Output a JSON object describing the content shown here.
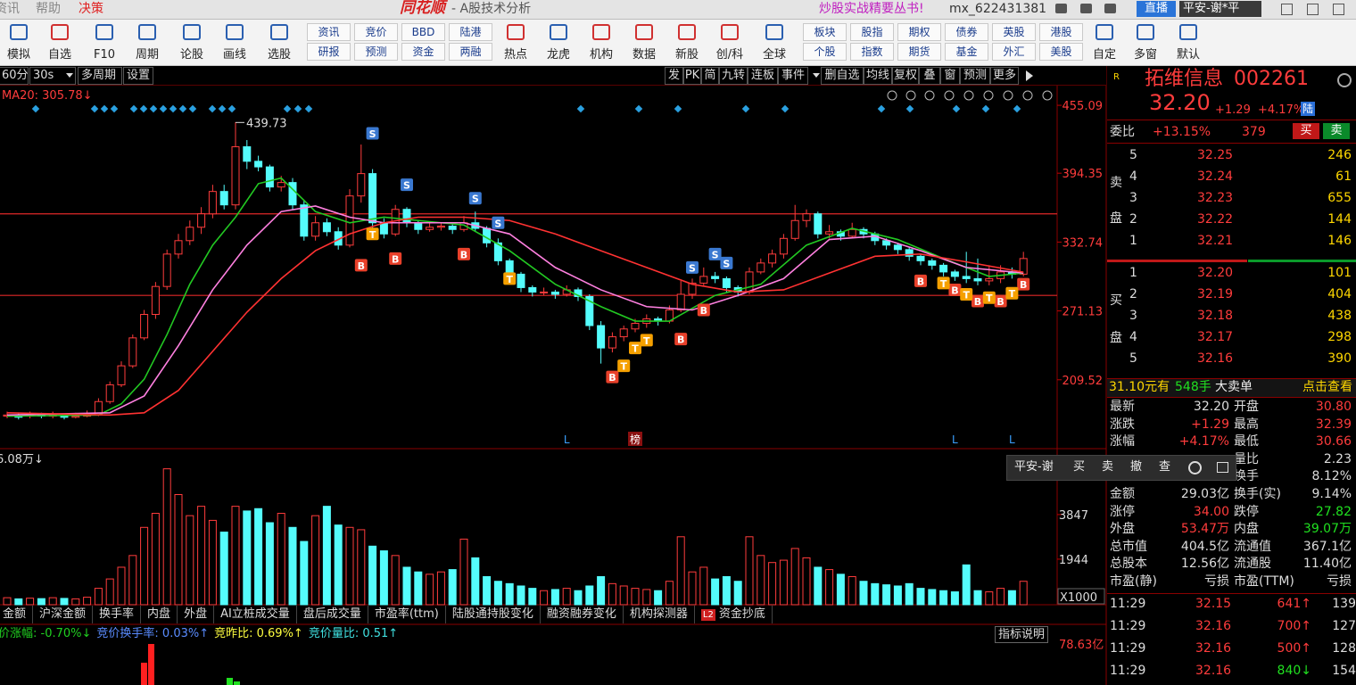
{
  "menu": {
    "left": [
      "资讯",
      "帮助",
      "决策"
    ],
    "logo": "同花顺",
    "title": "- A股技术分析",
    "promo": "炒股实战精要丛书!",
    "user": "mx_622431381",
    "live": "直播",
    "account": "平安-谢*平"
  },
  "toolbar": {
    "left": [
      "模拟",
      "自选",
      "F10",
      "周期",
      "论股",
      "画线",
      "选股"
    ],
    "pairs": [
      [
        "资讯",
        "研报"
      ],
      [
        "竞价",
        "预测"
      ],
      [
        "BBD",
        "资金"
      ],
      [
        "陆港",
        "两融"
      ]
    ],
    "mid": [
      "热点",
      "龙虎",
      "机构",
      "数据",
      "新股",
      "创/科",
      "全球"
    ],
    "pairs2": [
      [
        "板块",
        "个股"
      ],
      [
        "股指",
        "指数"
      ],
      [
        "期权",
        "期货"
      ],
      [
        "债券",
        "基金"
      ],
      [
        "英股",
        "外汇"
      ],
      [
        "港股",
        "美股"
      ]
    ],
    "right": [
      "自定",
      "多窗",
      "默认"
    ]
  },
  "period_bar": {
    "items": [
      "60分",
      "30s",
      "多周期",
      "设置"
    ],
    "tools": [
      "发",
      "PK",
      "简",
      "九转",
      "连板",
      "事件",
      "删自选",
      "均线",
      "复权",
      "叠",
      "窗",
      "预测",
      "更多"
    ]
  },
  "chart_data": [
    {
      "type": "candlestick",
      "ma_label": "MA20: 305.78↓",
      "high_label": 439.73,
      "ylim": [
        148.7,
        473.5
      ],
      "yticks": [
        455.09,
        394.35,
        332.74,
        271.13,
        209.52
      ],
      "candles": [
        [
          177,
          181,
          175,
          178
        ],
        [
          178,
          180,
          174,
          176
        ],
        [
          177,
          181,
          175,
          179
        ],
        [
          179,
          180,
          175,
          177
        ],
        [
          177,
          181,
          175,
          178
        ],
        [
          178,
          179,
          174,
          176
        ],
        [
          176,
          180,
          175,
          177
        ],
        [
          177,
          182,
          176,
          178
        ],
        [
          178,
          193,
          177,
          190
        ],
        [
          190,
          208,
          188,
          205
        ],
        [
          205,
          226,
          203,
          222
        ],
        [
          222,
          250,
          220,
          247
        ],
        [
          247,
          272,
          245,
          268
        ],
        [
          268,
          297,
          264,
          293
        ],
        [
          293,
          326,
          290,
          322
        ],
        [
          322,
          340,
          318,
          334
        ],
        [
          334,
          352,
          330,
          346
        ],
        [
          346,
          364,
          340,
          358
        ],
        [
          358,
          384,
          354,
          378
        ],
        [
          378,
          384,
          362,
          366
        ],
        [
          366,
          440,
          362,
          418
        ],
        [
          418,
          424,
          398,
          405
        ],
        [
          405,
          410,
          396,
          400
        ],
        [
          400,
          402,
          378,
          382
        ],
        [
          382,
          392,
          378,
          386
        ],
        [
          386,
          390,
          362,
          366
        ],
        [
          366,
          370,
          334,
          338
        ],
        [
          338,
          356,
          334,
          350
        ],
        [
          350,
          354,
          338,
          342
        ],
        [
          342,
          346,
          326,
          330
        ],
        [
          330,
          380,
          328,
          374
        ],
        [
          374,
          420,
          368,
          394
        ],
        [
          394,
          398,
          344,
          350
        ],
        [
          350,
          354,
          336,
          340
        ],
        [
          340,
          366,
          338,
          362
        ],
        [
          362,
          364,
          346,
          350
        ],
        [
          350,
          352,
          340,
          344
        ],
        [
          344,
          350,
          342,
          346
        ],
        [
          346,
          350,
          343,
          347
        ],
        [
          347,
          349,
          340,
          344
        ],
        [
          344,
          356,
          342,
          350
        ],
        [
          350,
          360,
          342,
          345
        ],
        [
          345,
          347,
          328,
          332
        ],
        [
          332,
          336,
          312,
          316
        ],
        [
          316,
          318,
          300,
          304
        ],
        [
          304,
          306,
          288,
          292
        ],
        [
          292,
          294,
          284,
          288
        ],
        [
          288,
          292,
          285,
          288
        ],
        [
          288,
          290,
          282,
          286
        ],
        [
          286,
          294,
          284,
          290
        ],
        [
          290,
          292,
          280,
          284
        ],
        [
          284,
          286,
          254,
          258
        ],
        [
          258,
          262,
          224,
          238
        ],
        [
          238,
          252,
          234,
          248
        ],
        [
          248,
          258,
          244,
          255
        ],
        [
          255,
          264,
          252,
          260
        ],
        [
          260,
          268,
          256,
          264
        ],
        [
          264,
          266,
          258,
          262
        ],
        [
          262,
          276,
          260,
          272
        ],
        [
          272,
          298,
          270,
          286
        ],
        [
          286,
          300,
          282,
          296
        ],
        [
          296,
          310,
          294,
          302
        ],
        [
          302,
          306,
          296,
          300
        ],
        [
          300,
          302,
          288,
          292
        ],
        [
          292,
          294,
          284,
          288
        ],
        [
          288,
          310,
          286,
          306
        ],
        [
          306,
          318,
          304,
          314
        ],
        [
          314,
          326,
          310,
          322
        ],
        [
          322,
          340,
          318,
          336
        ],
        [
          336,
          366,
          334,
          352
        ],
        [
          352,
          362,
          346,
          358
        ],
        [
          358,
          360,
          336,
          340
        ],
        [
          340,
          348,
          336,
          342
        ],
        [
          342,
          344,
          334,
          338
        ],
        [
          338,
          350,
          336,
          344
        ],
        [
          344,
          346,
          336,
          340
        ],
        [
          340,
          342,
          330,
          334
        ],
        [
          334,
          336,
          326,
          330
        ],
        [
          330,
          332,
          322,
          326
        ],
        [
          326,
          328,
          316,
          320
        ],
        [
          320,
          322,
          312,
          316
        ],
        [
          316,
          318,
          308,
          312
        ],
        [
          312,
          314,
          302,
          306
        ],
        [
          306,
          308,
          298,
          302
        ],
        [
          302,
          324,
          296,
          300
        ],
        [
          300,
          318,
          294,
          298
        ],
        [
          298,
          312,
          294,
          300
        ],
        [
          300,
          312,
          296,
          306
        ],
        [
          306,
          310,
          300,
          304
        ],
        [
          304,
          324,
          302,
          318
        ]
      ],
      "ma": [
        {
          "color": "#22c822",
          "x": [
            0,
            8,
            10,
            12,
            14,
            16,
            18,
            20,
            22,
            24,
            27,
            30,
            33,
            36,
            40,
            44,
            48,
            52,
            55,
            58,
            62,
            66,
            70,
            74,
            78,
            82,
            86,
            89
          ],
          "values": [
            177,
            178,
            188,
            210,
            250,
            295,
            330,
            355,
            385,
            390,
            360,
            350,
            355,
            352,
            348,
            325,
            295,
            275,
            262,
            262,
            285,
            295,
            330,
            345,
            335,
            318,
            302,
            305
          ]
        },
        {
          "color": "#ff80e0",
          "x": [
            0,
            9,
            12,
            15,
            18,
            21,
            24,
            27,
            30,
            33,
            36,
            40,
            44,
            48,
            52,
            56,
            60,
            64,
            68,
            72,
            76,
            80,
            84,
            89
          ],
          "values": [
            178,
            180,
            195,
            240,
            290,
            330,
            360,
            365,
            355,
            350,
            350,
            350,
            340,
            310,
            290,
            275,
            272,
            285,
            300,
            335,
            338,
            325,
            310,
            305
          ]
        },
        {
          "color": "#ff3232",
          "x": [
            0,
            9,
            12,
            15,
            18,
            21,
            24,
            27,
            30,
            33,
            36,
            40,
            44,
            48,
            52,
            56,
            60,
            64,
            68,
            72,
            76,
            80,
            84,
            89
          ],
          "values": [
            180,
            178,
            180,
            200,
            235,
            270,
            300,
            325,
            340,
            350,
            355,
            355,
            352,
            340,
            325,
            310,
            295,
            288,
            290,
            305,
            320,
            322,
            315,
            305.78
          ]
        }
      ],
      "levels": [
        358,
        285
      ],
      "signals": [
        {
          "label": "S",
          "i": 32,
          "price": 430
        },
        {
          "label": "S",
          "i": 35,
          "price": 384
        },
        {
          "label": "S",
          "i": 41,
          "price": 372
        },
        {
          "label": "S",
          "i": 43,
          "price": 350
        },
        {
          "label": "S",
          "i": 60,
          "price": 310
        },
        {
          "label": "S",
          "i": 62,
          "price": 322
        },
        {
          "label": "S",
          "i": 63,
          "price": 314
        },
        {
          "label": "B",
          "i": 31,
          "price": 312
        },
        {
          "label": "B",
          "i": 34,
          "price": 318
        },
        {
          "label": "B",
          "i": 40,
          "price": 322
        },
        {
          "label": "B",
          "i": 53,
          "price": 212
        },
        {
          "label": "B",
          "i": 59,
          "price": 246
        },
        {
          "label": "B",
          "i": 61,
          "price": 272
        },
        {
          "label": "B",
          "i": 80,
          "price": 298
        },
        {
          "label": "B",
          "i": 83,
          "price": 290
        },
        {
          "label": "B",
          "i": 85,
          "price": 280
        },
        {
          "label": "B",
          "i": 87,
          "price": 280
        },
        {
          "label": "B",
          "i": 89,
          "price": 295
        },
        {
          "label": "T",
          "i": 32,
          "price": 340
        },
        {
          "label": "T",
          "i": 44,
          "price": 300
        },
        {
          "label": "T",
          "i": 54,
          "price": 222
        },
        {
          "label": "T",
          "i": 55,
          "price": 238
        },
        {
          "label": "T",
          "i": 56,
          "price": 245
        },
        {
          "label": "T",
          "i": 82,
          "price": 296
        },
        {
          "label": "T",
          "i": 84,
          "price": 286
        },
        {
          "label": "T",
          "i": 86,
          "price": 283
        },
        {
          "label": "T",
          "i": 88,
          "price": 287
        }
      ],
      "events": [
        {
          "label": "L",
          "i": 49
        },
        {
          "label": "榜",
          "i": 55
        },
        {
          "label": "L",
          "i": 83
        },
        {
          "label": "L",
          "i": 88
        }
      ]
    },
    {
      "type": "bar",
      "label": "6.08万↓",
      "unit": "X1000",
      "ylim": [
        0,
        6584
      ],
      "yticks": [
        3847,
        1944
      ],
      "values": [
        300,
        250,
        280,
        260,
        300,
        270,
        250,
        320,
        700,
        1100,
        1600,
        2100,
        3300,
        3900,
        5800,
        4700,
        3800,
        4200,
        3600,
        3100,
        4200,
        4000,
        4100,
        3500,
        3900,
        3300,
        2700,
        3800,
        4200,
        3400,
        3300,
        3200,
        2500,
        2300,
        2100,
        1600,
        1400,
        1300,
        1400,
        1500,
        2800,
        2000,
        1200,
        1000,
        900,
        800,
        700,
        600,
        650,
        700,
        600,
        800,
        1200,
        900,
        800,
        700,
        650,
        600,
        1000,
        2900,
        1400,
        1600,
        1100,
        1200,
        1000,
        2900,
        2100,
        1800,
        1900,
        2400,
        2000,
        1600,
        1500,
        1300,
        1200,
        1000,
        900,
        850,
        800,
        900,
        700,
        650,
        600,
        550,
        1700,
        600,
        550,
        700,
        600,
        1000
      ]
    }
  ],
  "indicator_tabs": {
    "items": [
      "金额",
      "沪深金额",
      "换手率",
      "内盘",
      "外盘",
      "AI立桩成交量",
      "盘后成交量",
      "市盈率(ttm)",
      "陆股通持股变化",
      "融资融券变化",
      "机构探测器",
      "资金抄底"
    ],
    "badge": "L2"
  },
  "indicator_bar": {
    "items": [
      "价涨幅: -0.70%↓",
      "竞价换手率: 0.03%↑",
      "竞昨比: 0.69%↑",
      "竞价量比: 0.51↑"
    ],
    "help": "指标说明",
    "axis_label": "78.63亿"
  },
  "quote": {
    "badge": "R",
    "name": "拓维信息",
    "code": "002261",
    "price": "32.20",
    "change": "+1.29",
    "pct": "+4.17%",
    "tag": "陆",
    "weibi_label": "委比",
    "weibi": "+13.15%",
    "weicha": "379",
    "buy": "买",
    "sell": "卖"
  },
  "order_book": {
    "sell_label": [
      "卖",
      "盘"
    ],
    "buy_label": [
      "买",
      "盘"
    ],
    "sell": [
      [
        "5",
        "32.25",
        "246"
      ],
      [
        "4",
        "32.24",
        "61"
      ],
      [
        "3",
        "32.23",
        "655"
      ],
      [
        "2",
        "32.22",
        "144"
      ],
      [
        "1",
        "32.21",
        "146"
      ]
    ],
    "buy": [
      [
        "1",
        "32.20",
        "101"
      ],
      [
        "2",
        "32.19",
        "404"
      ],
      [
        "3",
        "32.18",
        "438"
      ],
      [
        "4",
        "32.17",
        "298"
      ],
      [
        "5",
        "32.16",
        "390"
      ]
    ]
  },
  "big_order": {
    "price_text": "31.10元有",
    "hands": "548手",
    "kind": "大卖单",
    "link": "点击查看"
  },
  "stats": {
    "left": [
      [
        "最新",
        "32.20"
      ],
      [
        "涨跌",
        "+1.29"
      ],
      [
        "涨幅",
        "+4.17%"
      ],
      [
        "金额",
        "29.03亿"
      ],
      [
        "涨停",
        "34.00"
      ],
      [
        "外盘",
        "53.47万"
      ],
      [
        "总市值",
        "404.5亿"
      ],
      [
        "总股本",
        "12.56亿"
      ],
      [
        "市盈(静)",
        "亏损"
      ]
    ],
    "right": [
      [
        "开盘",
        "30.80"
      ],
      [
        "最高",
        "32.39"
      ],
      [
        "最低",
        "30.66"
      ],
      [
        "量比",
        "2.23"
      ],
      [
        "换手",
        "8.12%"
      ],
      [
        "换手(实)",
        "9.14%"
      ],
      [
        "跌停",
        "27.82"
      ],
      [
        "内盘",
        "39.07万"
      ],
      [
        "流通值",
        "367.1亿"
      ],
      [
        "流通股",
        "11.40亿"
      ],
      [
        "市盈(TTM)",
        "亏损"
      ]
    ]
  },
  "trades": [
    [
      "11:29",
      "32.15",
      "641↑",
      "139"
    ],
    [
      "11:29",
      "32.16",
      "700↑",
      "127"
    ],
    [
      "11:29",
      "32.16",
      "500↑",
      "128"
    ],
    [
      "11:29",
      "32.16",
      "840↓",
      "154"
    ]
  ],
  "popup": {
    "account": "平安-谢",
    "actions": [
      "买",
      "卖",
      "撤",
      "查"
    ]
  }
}
